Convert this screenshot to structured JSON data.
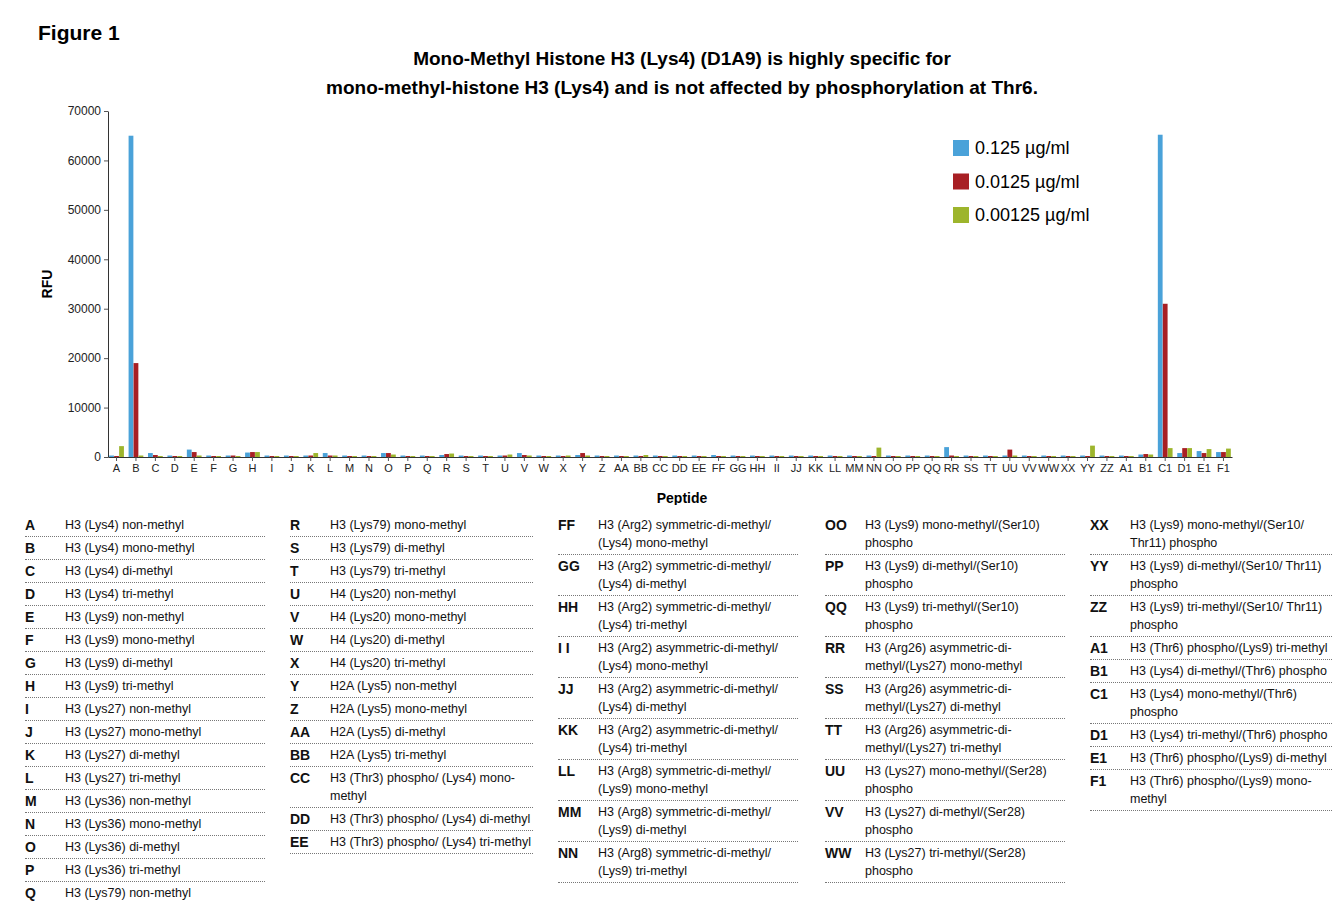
{
  "figure_label": "Figure 1",
  "chart_data": {
    "type": "bar",
    "title": "Mono-Methyl Histone H3 (Lys4) (D1A9) is highly specific for\nmono-methyl-histone H3 (Lys4) and is not affected by phosphorylation at Thr6.",
    "xlabel": "Peptide",
    "ylabel": "RFU",
    "categories": [
      "A",
      "B",
      "C",
      "D",
      "E",
      "F",
      "G",
      "H",
      "I",
      "J",
      "K",
      "L",
      "M",
      "N",
      "O",
      "P",
      "Q",
      "R",
      "S",
      "T",
      "U",
      "V",
      "W",
      "X",
      "Y",
      "Z",
      "AA",
      "BB",
      "CC",
      "DD",
      "EE",
      "FF",
      "GG",
      "HH",
      "II",
      "JJ",
      "KK",
      "LL",
      "MM",
      "NN",
      "OO",
      "PP",
      "QQ",
      "RR",
      "SS",
      "TT",
      "UU",
      "VV",
      "WW",
      "XX",
      "YY",
      "ZZ",
      "A1",
      "B1",
      "C1",
      "D1",
      "E1",
      "F1"
    ],
    "series": [
      {
        "name": "0.125 µg/ml",
        "color": "#4aa2d9",
        "values": [
          300,
          65000,
          800,
          300,
          1500,
          300,
          300,
          900,
          300,
          300,
          300,
          800,
          300,
          300,
          800,
          300,
          300,
          400,
          300,
          300,
          300,
          800,
          300,
          300,
          400,
          300,
          300,
          300,
          300,
          300,
          300,
          400,
          300,
          300,
          300,
          300,
          300,
          300,
          300,
          300,
          300,
          300,
          300,
          2000,
          300,
          300,
          300,
          300,
          300,
          300,
          300,
          300,
          300,
          500,
          65200,
          800,
          1200,
          1000
        ]
      },
      {
        "name": "0.0125 µg/ml",
        "color": "#a81f24",
        "values": [
          200,
          19000,
          400,
          200,
          1000,
          200,
          300,
          1000,
          200,
          200,
          300,
          300,
          200,
          200,
          800,
          200,
          200,
          600,
          200,
          200,
          300,
          400,
          200,
          200,
          800,
          200,
          200,
          200,
          200,
          200,
          200,
          200,
          200,
          200,
          200,
          200,
          200,
          200,
          200,
          200,
          200,
          200,
          200,
          300,
          200,
          200,
          1500,
          200,
          200,
          200,
          200,
          200,
          200,
          600,
          31000,
          1800,
          800,
          1000
        ]
      },
      {
        "name": "0.00125 µg/ml",
        "color": "#9db52c",
        "values": [
          2200,
          300,
          200,
          200,
          300,
          200,
          200,
          1000,
          200,
          200,
          800,
          300,
          200,
          200,
          500,
          200,
          200,
          700,
          200,
          200,
          500,
          300,
          200,
          300,
          300,
          200,
          200,
          400,
          200,
          200,
          200,
          200,
          200,
          200,
          200,
          200,
          200,
          200,
          200,
          1900,
          200,
          200,
          200,
          200,
          200,
          200,
          300,
          200,
          200,
          200,
          2300,
          200,
          200,
          500,
          1800,
          1800,
          1600,
          1700
        ]
      }
    ],
    "ylim": [
      0,
      70000
    ],
    "yticks": [
      0,
      10000,
      20000,
      30000,
      40000,
      50000,
      60000,
      70000
    ],
    "grid": false,
    "legend": "upper right"
  },
  "peptide_key": [
    [
      {
        "code": "A",
        "label": "H3 (Lys4) non-methyl"
      },
      {
        "code": "B",
        "label": "H3 (Lys4) mono-methyl"
      },
      {
        "code": "C",
        "label": "H3 (Lys4) di-methyl"
      },
      {
        "code": "D",
        "label": "H3 (Lys4) tri-methyl"
      },
      {
        "code": "E",
        "label": "H3 (Lys9) non-methyl"
      },
      {
        "code": "F",
        "label": "H3 (Lys9) mono-methyl"
      },
      {
        "code": "G",
        "label": "H3 (Lys9) di-methyl"
      },
      {
        "code": "H",
        "label": "H3 (Lys9) tri-methyl"
      },
      {
        "code": "I",
        "label": "H3 (Lys27) non-methyl"
      },
      {
        "code": "J",
        "label": "H3 (Lys27) mono-methyl"
      },
      {
        "code": "K",
        "label": "H3 (Lys27) di-methyl"
      },
      {
        "code": "L",
        "label": "H3 (Lys27) tri-methyl"
      },
      {
        "code": "M",
        "label": "H3 (Lys36) non-methyl"
      },
      {
        "code": "N",
        "label": "H3 (Lys36) mono-methyl"
      },
      {
        "code": "O",
        "label": "H3 (Lys36) di-methyl"
      },
      {
        "code": "P",
        "label": "H3 (Lys36) tri-methyl"
      },
      {
        "code": "Q",
        "label": "H3 (Lys79) non-methyl"
      }
    ],
    [
      {
        "code": "R",
        "label": "H3 (Lys79) mono-methyl"
      },
      {
        "code": "S",
        "label": "H3 (Lys79) di-methyl"
      },
      {
        "code": "T",
        "label": "H3 (Lys79) tri-methyl"
      },
      {
        "code": "U",
        "label": "H4 (Lys20) non-methyl"
      },
      {
        "code": "V",
        "label": "H4 (Lys20) mono-methyl"
      },
      {
        "code": "W",
        "label": "H4 (Lys20) di-methyl"
      },
      {
        "code": "X",
        "label": "H4 (Lys20) tri-methyl"
      },
      {
        "code": "Y",
        "label": "H2A (Lys5) non-methyl"
      },
      {
        "code": "Z",
        "label": "H2A (Lys5) mono-methyl"
      },
      {
        "code": "AA",
        "label": "H2A (Lys5) di-methyl"
      },
      {
        "code": "BB",
        "label": "H2A (Lys5) tri-methyl"
      },
      {
        "code": "CC",
        "label": "H3 (Thr3) phospho/ (Lys4) mono-methyl"
      },
      {
        "code": "DD",
        "label": "H3 (Thr3) phospho/ (Lys4) di-methyl"
      },
      {
        "code": "EE",
        "label": "H3 (Thr3) phospho/ (Lys4) tri-methyl"
      }
    ],
    [
      {
        "code": "FF",
        "label": "H3 (Arg2) symmetric-di-methyl/ (Lys4) mono-methyl"
      },
      {
        "code": "GG",
        "label": "H3 (Arg2) symmetric-di-methyl/ (Lys4) di-methyl"
      },
      {
        "code": "HH",
        "label": "H3 (Arg2) symmetric-di-methyl/ (Lys4) tri-methyl"
      },
      {
        "code": "I I",
        "label": "H3 (Arg2) asymmetric-di-methyl/ (Lys4) mono-methyl"
      },
      {
        "code": "JJ",
        "label": "H3 (Arg2) asymmetric-di-methyl/ (Lys4) di-methyl"
      },
      {
        "code": "KK",
        "label": "H3 (Arg2) asymmetric-di-methyl/ (Lys4) tri-methyl"
      },
      {
        "code": "LL",
        "label": "H3 (Arg8) symmetric-di-methyl/ (Lys9) mono-methyl"
      },
      {
        "code": "MM",
        "label": "H3 (Arg8) symmetric-di-methyl/ (Lys9) di-methyl"
      },
      {
        "code": "NN",
        "label": "H3 (Arg8) symmetric-di-methyl/ (Lys9) tri-methyl"
      }
    ],
    [
      {
        "code": "OO",
        "label": "H3 (Lys9) mono-methyl/(Ser10) phospho"
      },
      {
        "code": "PP",
        "label": "H3 (Lys9) di-methyl/(Ser10) phospho"
      },
      {
        "code": "QQ",
        "label": "H3 (Lys9) tri-methyl/(Ser10) phospho"
      },
      {
        "code": "RR",
        "label": "H3 (Arg26) asymmetric-di-methyl/(Lys27) mono-methyl"
      },
      {
        "code": "SS",
        "label": "H3 (Arg26) asymmetric-di-methyl/(Lys27) di-methyl"
      },
      {
        "code": "TT",
        "label": "H3 (Arg26) asymmetric-di-methyl/(Lys27) tri-methyl"
      },
      {
        "code": "UU",
        "label": "H3 (Lys27) mono-methyl/(Ser28) phospho"
      },
      {
        "code": "VV",
        "label": "H3 (Lys27) di-methyl/(Ser28) phospho"
      },
      {
        "code": "WW",
        "label": "H3 (Lys27) tri-methyl/(Ser28) phospho"
      }
    ],
    [
      {
        "code": "XX",
        "label": "H3 (Lys9) mono-methyl/(Ser10/ Thr11) phospho"
      },
      {
        "code": "YY",
        "label": "H3 (Lys9) di-methyl/(Ser10/ Thr11) phospho"
      },
      {
        "code": "ZZ",
        "label": "H3 (Lys9) tri-methyl/(Ser10/ Thr11) phospho"
      },
      {
        "code": "A1",
        "label": "H3 (Thr6) phospho/(Lys9) tri-methyl"
      },
      {
        "code": "B1",
        "label": "H3 (Lys4) di-methyl/(Thr6) phospho"
      },
      {
        "code": "C1",
        "label": "H3 (Lys4) mono-methyl/(Thr6) phospho"
      },
      {
        "code": "D1",
        "label": "H3 (Lys4) tri-methyl/(Thr6) phospho"
      },
      {
        "code": "E1",
        "label": "H3 (Thr6) phospho/(Lys9) di-methyl"
      },
      {
        "code": "F1",
        "label": "H3 (Thr6) phospho/(Lys9) mono-methyl"
      }
    ]
  ]
}
